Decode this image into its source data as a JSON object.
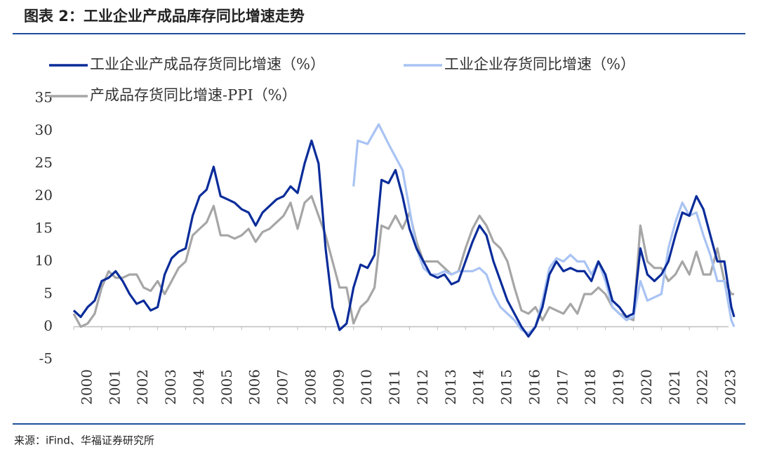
{
  "chart_data": {
    "type": "line",
    "title": "图表 2：工业企业产成品库存同比增速走势",
    "source": "来源：iFind、华福证券研究所",
    "xlim": [
      2000,
      2023.7
    ],
    "xticks": [
      2000,
      2001,
      2002,
      2003,
      2004,
      2005,
      2006,
      2007,
      2008,
      2009,
      2010,
      2011,
      2012,
      2013,
      2014,
      2015,
      2016,
      2017,
      2018,
      2019,
      2020,
      2021,
      2022,
      2023
    ],
    "ylim": [
      -5,
      35
    ],
    "yticks": [
      -5,
      0,
      5,
      10,
      15,
      20,
      25,
      30,
      35
    ],
    "series": [
      {
        "name": "工业企业产成品存货同比增速（%）",
        "color": "#0a2c9a",
        "x": [
          2000,
          2000.25,
          2000.5,
          2000.75,
          2001,
          2001.25,
          2001.5,
          2001.75,
          2002,
          2002.25,
          2002.5,
          2002.75,
          2003,
          2003.25,
          2003.5,
          2003.75,
          2004,
          2004.25,
          2004.5,
          2004.75,
          2005,
          2005.25,
          2005.5,
          2005.75,
          2006,
          2006.25,
          2006.5,
          2006.75,
          2007,
          2007.25,
          2007.5,
          2007.75,
          2008,
          2008.25,
          2008.5,
          2008.75,
          2009,
          2009.25,
          2009.5,
          2009.75,
          2010,
          2010.25,
          2010.5,
          2010.75,
          2011,
          2011.25,
          2011.5,
          2011.75,
          2012,
          2012.25,
          2012.5,
          2012.75,
          2013,
          2013.25,
          2013.5,
          2013.75,
          2014,
          2014.25,
          2014.5,
          2014.75,
          2015,
          2015.25,
          2015.5,
          2015.75,
          2016,
          2016.25,
          2016.5,
          2016.75,
          2017,
          2017.25,
          2017.5,
          2017.75,
          2018,
          2018.25,
          2018.5,
          2018.75,
          2019,
          2019.25,
          2019.5,
          2019.75,
          2020,
          2020.25,
          2020.5,
          2020.75,
          2021,
          2021.25,
          2021.5,
          2021.75,
          2022,
          2022.25,
          2022.5,
          2022.75,
          2023,
          2023.25,
          2023.5,
          2023.6
        ],
        "values": [
          2.5,
          1.5,
          3,
          4,
          7,
          7.5,
          8.5,
          7,
          5,
          3.5,
          4,
          2.5,
          3,
          8,
          10.5,
          11.5,
          12,
          17,
          20,
          21,
          24.5,
          20,
          19.5,
          19,
          18,
          17.5,
          15.5,
          17.5,
          18.5,
          19.5,
          20,
          21.5,
          20.5,
          25,
          28.5,
          25,
          12,
          3,
          -0.5,
          0.5,
          6,
          9.5,
          9,
          11,
          22.5,
          22,
          24,
          20,
          15,
          12,
          10,
          8,
          7.5,
          8,
          6.5,
          7,
          10,
          13,
          15.5,
          14,
          10,
          7,
          4,
          2,
          0,
          -1.5,
          0,
          3,
          8,
          10,
          8.5,
          9,
          8.5,
          8.5,
          7,
          10,
          8,
          4,
          3,
          1.5,
          2,
          12,
          8,
          7,
          8,
          10,
          14,
          17.5,
          17,
          20,
          18,
          14,
          10,
          10,
          3,
          1.5
        ]
      },
      {
        "name": "工业企业存货同比增速（%）",
        "color": "#a9c3f3",
        "x": [
          2010,
          2010.15,
          2010.5,
          2010.9,
          2011.25,
          2011.5,
          2011.75,
          2012,
          2012.25,
          2012.5,
          2012.75,
          2013,
          2013.25,
          2013.5,
          2013.75,
          2014,
          2014.25,
          2014.5,
          2014.75,
          2015,
          2015.25,
          2015.5,
          2015.75,
          2016,
          2016.25,
          2016.5,
          2016.75,
          2017,
          2017.25,
          2017.5,
          2017.75,
          2018,
          2018.25,
          2018.5,
          2018.75,
          2019,
          2019.25,
          2019.5,
          2019.75,
          2020,
          2020.25,
          2020.5,
          2020.75,
          2021,
          2021.25,
          2021.5,
          2021.75,
          2022,
          2022.25,
          2022.5,
          2022.75,
          2023,
          2023.25,
          2023.5,
          2023.6
        ],
        "values": [
          21.5,
          28.5,
          28,
          31,
          28,
          26,
          24,
          18,
          12,
          9,
          8,
          8,
          8.5,
          8,
          8.5,
          8.5,
          8.5,
          9,
          8,
          5,
          3,
          2,
          1,
          -0.5,
          -1,
          0,
          4,
          9,
          10.5,
          10,
          11,
          10,
          10,
          8,
          10,
          7,
          3,
          2,
          1,
          1.5,
          7,
          4,
          4.5,
          5,
          12,
          16,
          19,
          17,
          17.5,
          14,
          11,
          7,
          7,
          1,
          0
        ]
      },
      {
        "name": "产成品存货同比增速-PPI（%）",
        "color": "#a6a6a6",
        "x": [
          2000,
          2000.25,
          2000.5,
          2000.75,
          2001,
          2001.25,
          2001.5,
          2001.75,
          2002,
          2002.25,
          2002.5,
          2002.75,
          2003,
          2003.25,
          2003.5,
          2003.75,
          2004,
          2004.25,
          2004.5,
          2004.75,
          2005,
          2005.25,
          2005.5,
          2005.75,
          2006,
          2006.25,
          2006.5,
          2006.75,
          2007,
          2007.25,
          2007.5,
          2007.75,
          2008,
          2008.25,
          2008.5,
          2008.75,
          2009,
          2009.25,
          2009.5,
          2009.75,
          2010,
          2010.25,
          2010.5,
          2010.75,
          2011,
          2011.25,
          2011.5,
          2011.75,
          2012,
          2012.25,
          2012.5,
          2012.75,
          2013,
          2013.25,
          2013.5,
          2013.75,
          2014,
          2014.25,
          2014.5,
          2014.75,
          2015,
          2015.25,
          2015.5,
          2015.75,
          2016,
          2016.25,
          2016.5,
          2016.75,
          2017,
          2017.25,
          2017.5,
          2017.75,
          2018,
          2018.25,
          2018.5,
          2018.75,
          2019,
          2019.25,
          2019.5,
          2019.75,
          2020,
          2020.25,
          2020.5,
          2020.75,
          2021,
          2021.25,
          2021.5,
          2021.75,
          2022,
          2022.25,
          2022.5,
          2022.75,
          2023,
          2023.25,
          2023.5,
          2023.6
        ],
        "values": [
          2,
          0,
          0.5,
          2,
          6,
          8.5,
          7.5,
          7.5,
          8,
          8,
          6,
          5.5,
          7,
          5,
          7,
          9,
          10,
          14,
          15,
          16,
          18.5,
          14,
          14,
          13.5,
          14,
          15,
          13,
          14.5,
          15,
          16,
          17,
          19,
          15,
          19,
          20,
          17,
          14,
          10,
          6,
          6,
          0.5,
          3,
          4,
          6,
          15.5,
          15,
          17,
          15,
          17.5,
          13,
          10,
          10,
          10,
          9,
          8,
          8.5,
          12,
          15,
          17,
          15.5,
          13,
          12,
          10,
          6,
          2.5,
          2,
          3,
          1,
          3,
          2.5,
          2,
          3.5,
          2,
          5,
          5,
          6,
          5,
          3,
          2,
          1.5,
          1,
          15.5,
          10,
          9,
          9,
          7,
          8,
          10,
          8,
          11.5,
          8,
          8,
          12,
          7,
          5,
          5
        ]
      }
    ]
  }
}
